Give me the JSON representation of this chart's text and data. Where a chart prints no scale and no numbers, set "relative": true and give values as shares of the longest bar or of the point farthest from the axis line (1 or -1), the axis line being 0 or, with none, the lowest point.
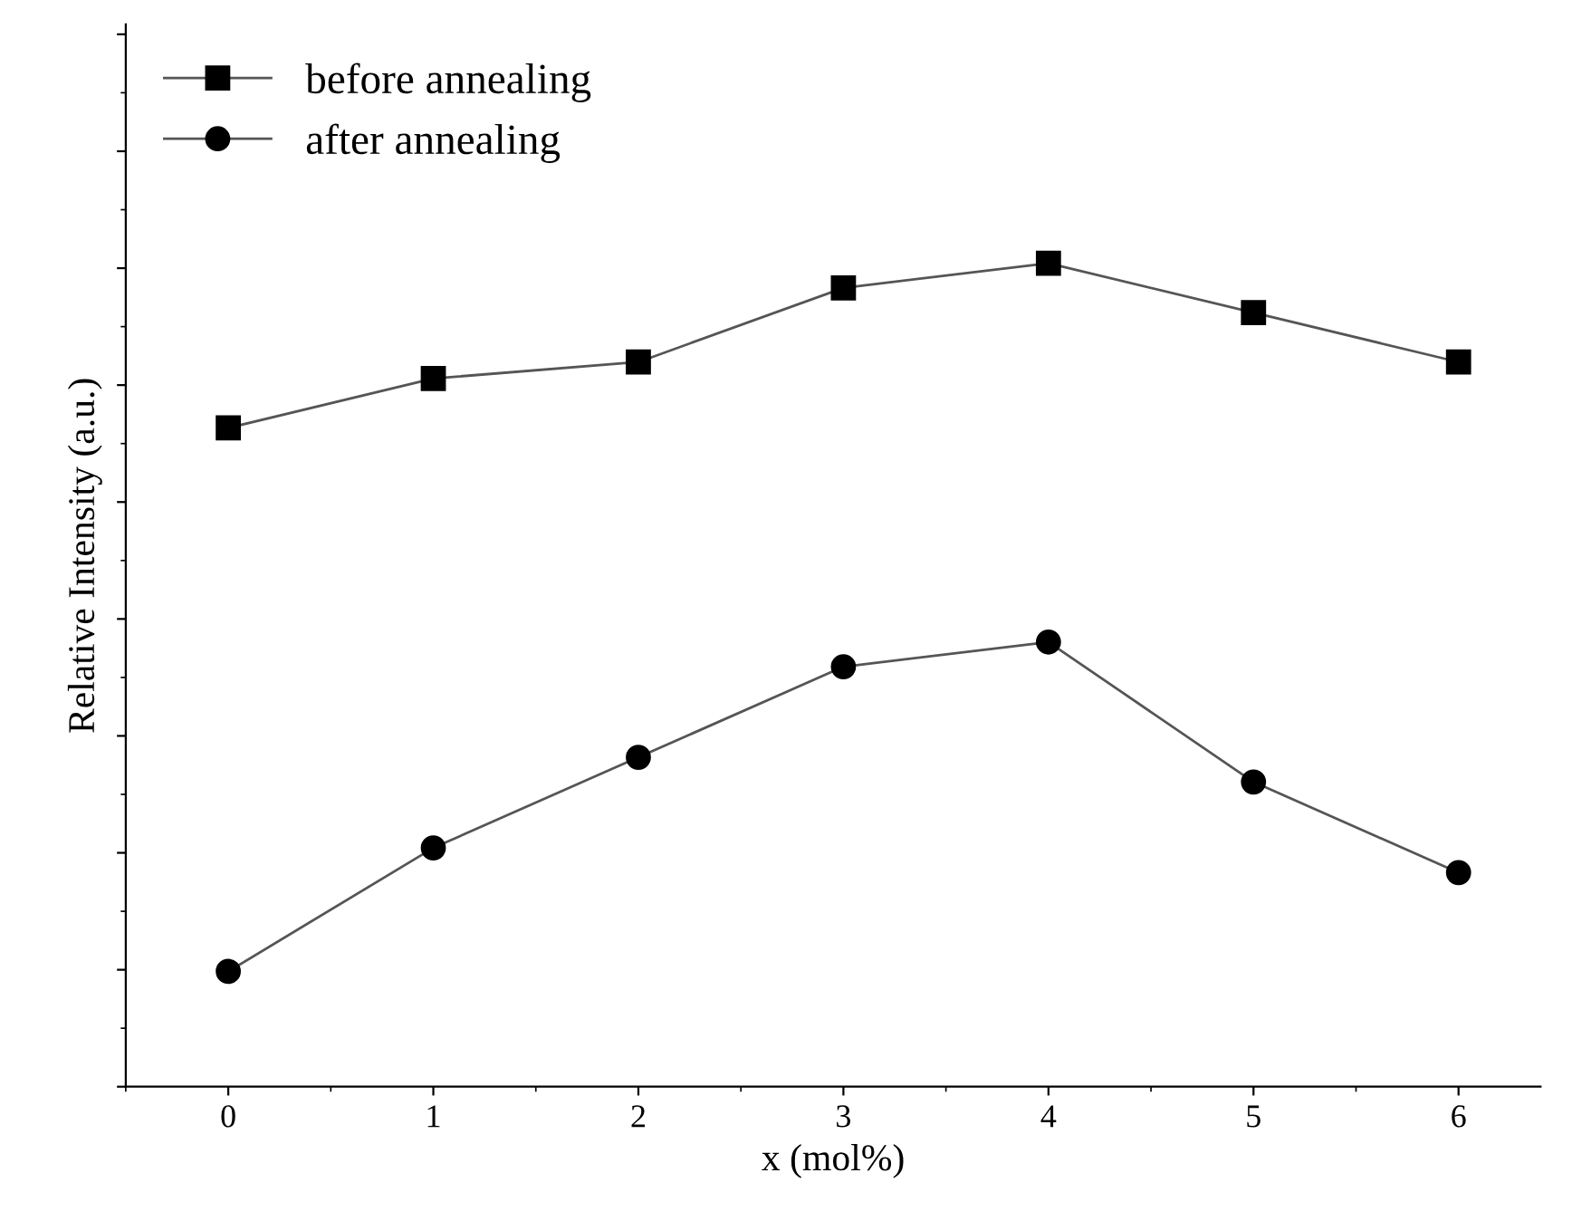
{
  "chart_data": {
    "type": "line",
    "xlabel": "x (mol%)",
    "ylabel": "Relative Intensity (a.u.)",
    "relative": true,
    "x": [
      0,
      1,
      2,
      3,
      4,
      5,
      6
    ],
    "xlim": [
      -0.5,
      6.4
    ],
    "xticks": [
      0,
      1,
      2,
      3,
      4,
      5,
      6
    ],
    "tick_labels": "x",
    "legend": "top left",
    "grid": false,
    "series": [
      {
        "name": "before annealing",
        "color": "#000000",
        "marker": "square",
        "values": [
          0.8,
          0.86,
          0.88,
          0.97,
          1.0,
          0.94,
          0.88
        ]
      },
      {
        "name": "after annealing",
        "color": "#000000",
        "marker": "circle",
        "values": [
          0.14,
          0.29,
          0.4,
          0.51,
          0.54,
          0.37,
          0.26
        ]
      }
    ]
  }
}
